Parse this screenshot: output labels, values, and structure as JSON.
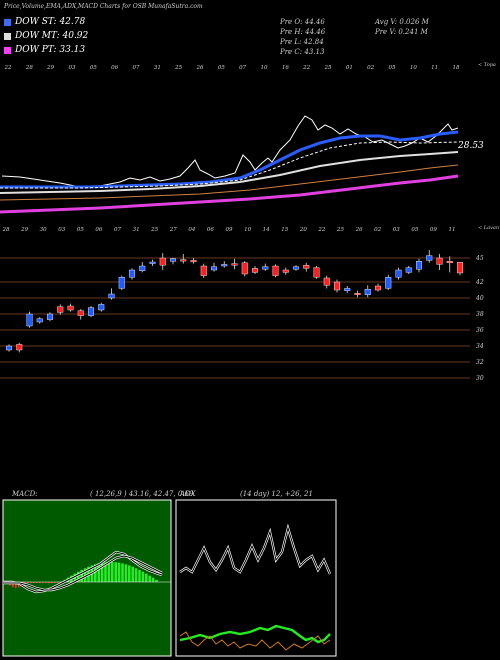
{
  "header": {
    "title": "Price,Volume,EMA,ADX,MACD Charts for OSB MunafaSutra.com",
    "legend": [
      {
        "label": "DOW ST: 42.78",
        "color": "#3b6cff"
      },
      {
        "label": "DOW MT: 40.92",
        "color": "#dddddd"
      },
      {
        "label": "DOW PT: 33.13",
        "color": "#ff3bff"
      }
    ],
    "ohlc": {
      "open": "Pre  O: 44.46",
      "high": "Pre  H: 44.46",
      "low": "Pre  L: 42.84",
      "close": "Pre  C: 43.13",
      "avg_volume": "Avg V: 0.026  M",
      "volume": "Pre  V: 0.241 M"
    }
  },
  "ema_panel": {
    "date_labels": [
      "22",
      "28",
      "29",
      "03",
      "05",
      "06",
      "07",
      "31",
      "25",
      "26",
      "05",
      "07",
      "10",
      "16",
      "22",
      "25",
      "01",
      "02",
      "05",
      "10",
      "11",
      "18"
    ],
    "top_right_label": "< Topa",
    "value_label": "28.53",
    "series": [
      {
        "name": "ST",
        "color": "#2a5cff"
      },
      {
        "name": "MT",
        "color": "#e0e0e0"
      },
      {
        "name": "PT",
        "color": "#e040e0"
      }
    ]
  },
  "candle_panel": {
    "date_labels": [
      "28",
      "29",
      "30",
      "03",
      "05",
      "06",
      "07",
      "31",
      "25",
      "27",
      "04",
      "06",
      "09",
      "10",
      "14",
      "15",
      "20",
      "22",
      "25",
      "26",
      "02",
      "03",
      "05",
      "09",
      "11"
    ],
    "top_right_label": "< Lavan",
    "y_ticks": [
      45,
      42,
      40,
      38,
      36,
      34,
      32,
      30
    ]
  },
  "macd": {
    "label": "MACD:",
    "values": "( 12,26,9 ) 43.16, 42.47, 0.69"
  },
  "adx": {
    "label": "ADX",
    "values": "(14  day) 12,  +26,  21"
  },
  "chart_data": [
    {
      "type": "line",
      "title": "",
      "series": [
        {
          "name": "DOW ST",
          "last": 42.78
        },
        {
          "name": "DOW MT",
          "last": 40.92
        },
        {
          "name": "DOW PT",
          "last": 33.13
        }
      ]
    },
    {
      "type": "candlestick",
      "ylim": [
        29.5,
        46
      ],
      "y_ticks": [
        45,
        42,
        40,
        38,
        36,
        34,
        32,
        30
      ],
      "candles": [
        {
          "o": 33.5,
          "c": 34.0,
          "h": 34.2,
          "l": 33.3,
          "up": true
        },
        {
          "o": 33.5,
          "c": 34.2,
          "h": 34.4,
          "l": 33.2,
          "up": false
        },
        {
          "o": 36.5,
          "c": 38.0,
          "h": 38.3,
          "l": 36.3,
          "up": true
        },
        {
          "o": 37.0,
          "c": 37.4,
          "h": 37.6,
          "l": 36.8,
          "up": true
        },
        {
          "o": 37.3,
          "c": 38.0,
          "h": 38.2,
          "l": 37.1,
          "up": true
        },
        {
          "o": 38.2,
          "c": 38.9,
          "h": 39.2,
          "l": 37.9,
          "up": false
        },
        {
          "o": 38.5,
          "c": 39.0,
          "h": 39.3,
          "l": 38.3,
          "up": false
        },
        {
          "o": 38.4,
          "c": 37.8,
          "h": 38.6,
          "l": 37.3,
          "up": false
        },
        {
          "o": 37.8,
          "c": 38.8,
          "h": 39.0,
          "l": 37.6,
          "up": true
        },
        {
          "o": 38.5,
          "c": 39.2,
          "h": 39.4,
          "l": 38.3,
          "up": true
        },
        {
          "o": 40.0,
          "c": 40.5,
          "h": 41.2,
          "l": 39.8,
          "up": true
        },
        {
          "o": 41.2,
          "c": 42.6,
          "h": 42.8,
          "l": 41.0,
          "up": true
        },
        {
          "o": 42.6,
          "c": 43.5,
          "h": 43.7,
          "l": 42.3,
          "up": true
        },
        {
          "o": 43.4,
          "c": 44.0,
          "h": 44.5,
          "l": 43.2,
          "up": true
        },
        {
          "o": 44.3,
          "c": 44.5,
          "h": 44.8,
          "l": 44.0,
          "up": true
        },
        {
          "o": 45.0,
          "c": 44.1,
          "h": 45.6,
          "l": 43.5,
          "up": false
        },
        {
          "o": 44.6,
          "c": 44.9,
          "h": 45.0,
          "l": 44.2,
          "up": true
        },
        {
          "o": 44.7,
          "c": 44.8,
          "h": 45.5,
          "l": 44.3,
          "up": false
        },
        {
          "o": 44.7,
          "c": 44.6,
          "h": 45.0,
          "l": 44.3,
          "up": false
        },
        {
          "o": 44.0,
          "c": 42.8,
          "h": 44.3,
          "l": 42.5,
          "up": false
        },
        {
          "o": 43.5,
          "c": 43.9,
          "h": 44.4,
          "l": 43.3,
          "up": true
        },
        {
          "o": 44.0,
          "c": 44.2,
          "h": 44.6,
          "l": 43.8,
          "up": true
        },
        {
          "o": 44.3,
          "c": 44.1,
          "h": 44.9,
          "l": 43.6,
          "up": false
        },
        {
          "o": 44.4,
          "c": 43.0,
          "h": 44.6,
          "l": 42.7,
          "up": false
        },
        {
          "o": 43.7,
          "c": 43.2,
          "h": 44.0,
          "l": 43.0,
          "up": false
        },
        {
          "o": 43.6,
          "c": 43.9,
          "h": 44.3,
          "l": 43.4,
          "up": true
        },
        {
          "o": 44.0,
          "c": 42.8,
          "h": 44.2,
          "l": 42.6,
          "up": false
        },
        {
          "o": 43.5,
          "c": 43.2,
          "h": 43.8,
          "l": 42.9,
          "up": false
        },
        {
          "o": 43.6,
          "c": 43.9,
          "h": 44.1,
          "l": 43.4,
          "up": true
        },
        {
          "o": 44.1,
          "c": 43.7,
          "h": 44.4,
          "l": 43.3,
          "up": false
        },
        {
          "o": 43.8,
          "c": 42.6,
          "h": 44.0,
          "l": 42.4,
          "up": false
        },
        {
          "o": 42.5,
          "c": 41.6,
          "h": 42.8,
          "l": 41.2,
          "up": false
        },
        {
          "o": 42.0,
          "c": 41.0,
          "h": 42.3,
          "l": 40.7,
          "up": false
        },
        {
          "o": 40.9,
          "c": 41.2,
          "h": 41.5,
          "l": 40.6,
          "up": true
        },
        {
          "o": 40.6,
          "c": 40.5,
          "h": 40.9,
          "l": 40.1,
          "up": false
        },
        {
          "o": 40.4,
          "c": 41.1,
          "h": 41.6,
          "l": 40.1,
          "up": true
        },
        {
          "o": 41.5,
          "c": 41.0,
          "h": 41.8,
          "l": 40.8,
          "up": false
        },
        {
          "o": 41.2,
          "c": 42.6,
          "h": 42.9,
          "l": 41.0,
          "up": true
        },
        {
          "o": 42.6,
          "c": 43.5,
          "h": 43.8,
          "l": 42.3,
          "up": true
        },
        {
          "o": 43.2,
          "c": 43.8,
          "h": 44.0,
          "l": 43.0,
          "up": true
        },
        {
          "o": 43.6,
          "c": 44.6,
          "h": 44.9,
          "l": 43.2,
          "up": true
        },
        {
          "o": 44.7,
          "c": 45.3,
          "h": 46.0,
          "l": 44.4,
          "up": true
        },
        {
          "o": 45.0,
          "c": 44.2,
          "h": 45.5,
          "l": 43.5,
          "up": false
        },
        {
          "o": 44.6,
          "c": 44.4,
          "h": 45.2,
          "l": 43.2,
          "up": false
        },
        {
          "o": 44.46,
          "c": 43.13,
          "h": 44.46,
          "l": 42.84,
          "up": false
        }
      ]
    },
    {
      "type": "bar",
      "title": "MACD (12,26,9)",
      "values": [
        "43.16",
        "42.47",
        "0.69"
      ]
    },
    {
      "type": "line",
      "title": "ADX (14 day)",
      "values": [
        "12",
        "+26",
        "21"
      ]
    }
  ]
}
